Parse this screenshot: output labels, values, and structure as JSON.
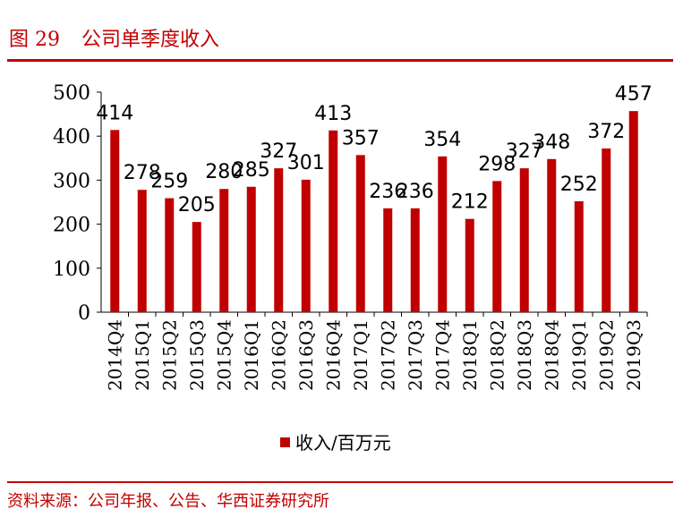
{
  "header": {
    "figure_no": "图 29",
    "title": "公司单季度收入"
  },
  "source": "资料来源：公司年报、公告、华西证券研究所",
  "chart_data": {
    "type": "bar",
    "title": "公司单季度收入",
    "categories": [
      "2014Q4",
      "2015Q1",
      "2015Q2",
      "2015Q3",
      "2015Q4",
      "2016Q1",
      "2016Q2",
      "2016Q3",
      "2016Q4",
      "2017Q1",
      "2017Q2",
      "2017Q3",
      "2017Q4",
      "2018Q1",
      "2018Q2",
      "2018Q3",
      "2018Q4",
      "2019Q1",
      "2019Q2",
      "2019Q3"
    ],
    "series": [
      {
        "name": "收入/百万元",
        "color": "#c00000",
        "values": [
          414,
          278,
          259,
          205,
          280,
          285,
          327,
          301,
          413,
          357,
          236,
          236,
          354,
          212,
          298,
          327,
          348,
          252,
          372,
          457
        ]
      }
    ],
    "ylim": [
      0,
      500
    ],
    "yticks": [
      0,
      100,
      200,
      300,
      400,
      500
    ],
    "legend": "bottom",
    "grid": false
  }
}
